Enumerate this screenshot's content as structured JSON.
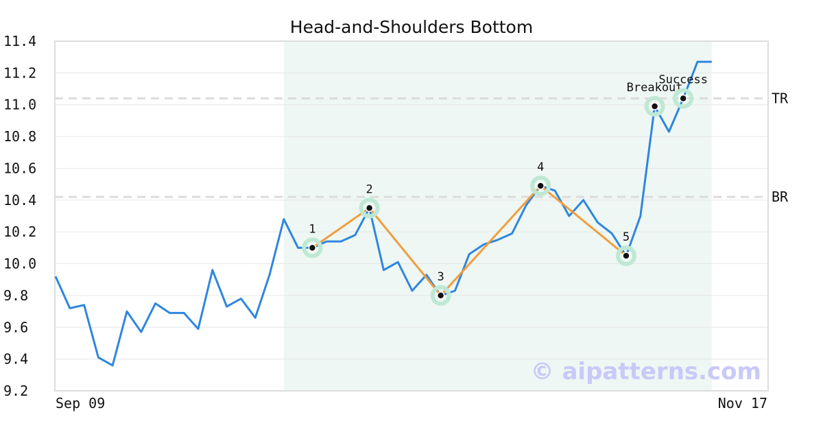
{
  "chart_data": {
    "type": "line",
    "title": "Head-and-Shoulders Bottom",
    "x_tick_labels": [
      "Sep 09",
      "Nov 17"
    ],
    "ylim": [
      9.2,
      11.4
    ],
    "y_ticks": [
      "9.2",
      "9.4",
      "9.6",
      "9.8",
      "10.0",
      "10.2",
      "10.4",
      "10.6",
      "10.8",
      "11.0",
      "11.2",
      "11.4"
    ],
    "grid": "horizontal",
    "series": [
      {
        "values": [
          9.92,
          9.72,
          9.74,
          9.41,
          9.36,
          9.7,
          9.57,
          9.75,
          9.69,
          9.69,
          9.59,
          9.96,
          9.73,
          9.78,
          9.66,
          9.93,
          10.28,
          10.1,
          10.1,
          10.14,
          10.14,
          10.18,
          10.35,
          9.96,
          10.01,
          9.83,
          9.93,
          9.8,
          9.83,
          10.06,
          10.12,
          10.15,
          10.19,
          10.37,
          10.49,
          10.46,
          10.3,
          10.4,
          10.26,
          10.19,
          10.05,
          10.3,
          10.99,
          10.83,
          11.04,
          11.27,
          11.27
        ],
        "color": "#2e86de"
      }
    ],
    "pattern_region": {
      "start_index": 16,
      "end_index": 46,
      "color": "#eef7f3"
    },
    "pattern_points": [
      {
        "label": "1",
        "index": 18,
        "value": 10.1
      },
      {
        "label": "2",
        "index": 22,
        "value": 10.35
      },
      {
        "label": "3",
        "index": 27,
        "value": 9.8
      },
      {
        "label": "4",
        "index": 34,
        "value": 10.49
      },
      {
        "label": "5",
        "index": 40,
        "value": 10.05
      }
    ],
    "pattern_line_color": "#f39c3c",
    "event_points": [
      {
        "label": "Breakout",
        "index": 42,
        "value": 10.99
      },
      {
        "label": "Success",
        "index": 44,
        "value": 11.04
      }
    ],
    "marker_halo_color": "#bfe8d4",
    "reference_lines": [
      {
        "label": "TR",
        "value": 11.04
      },
      {
        "label": "BR",
        "value": 10.42
      }
    ],
    "watermark": "© aipatterns.com"
  }
}
